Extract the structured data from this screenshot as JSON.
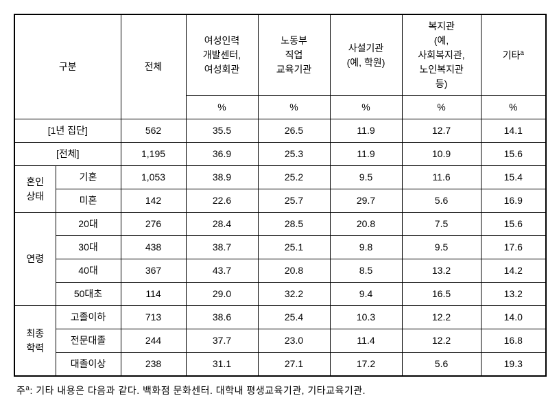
{
  "headers": {
    "category": "구분",
    "total": "전체",
    "col1": "여성인력\n개발센터,\n여성회관",
    "col2": "노동부\n직업\n교육기관",
    "col3": "사설기관\n(예, 학원)",
    "col4": "복지관\n(예,\n사회복지관,\n노인복지관\n등)",
    "col5": "기타",
    "col5_sup": "a",
    "pct": "%"
  },
  "rows": [
    {
      "cat1": "",
      "cat1_span": null,
      "label": "[1년 집단]",
      "label_colspan": 2,
      "total": "562",
      "v1": "35.5",
      "v2": "26.5",
      "v3": "11.9",
      "v4": "12.7",
      "v5": "14.1"
    },
    {
      "cat1": "",
      "cat1_span": null,
      "label": "[전체]",
      "label_colspan": 2,
      "total": "1,195",
      "v1": "36.9",
      "v2": "25.3",
      "v3": "11.9",
      "v4": "10.9",
      "v5": "15.6"
    },
    {
      "cat1": "혼인\n상태",
      "cat1_span": 2,
      "label": "기혼",
      "label_colspan": 1,
      "total": "1,053",
      "v1": "38.9",
      "v2": "25.2",
      "v3": "9.5",
      "v4": "11.6",
      "v5": "15.4"
    },
    {
      "cat1": null,
      "cat1_span": null,
      "label": "미혼",
      "label_colspan": 1,
      "total": "142",
      "v1": "22.6",
      "v2": "25.7",
      "v3": "29.7",
      "v4": "5.6",
      "v5": "16.9"
    },
    {
      "cat1": "연령",
      "cat1_span": 4,
      "label": "20대",
      "label_colspan": 1,
      "total": "276",
      "v1": "28.4",
      "v2": "28.5",
      "v3": "20.8",
      "v4": "7.5",
      "v5": "15.6"
    },
    {
      "cat1": null,
      "cat1_span": null,
      "label": "30대",
      "label_colspan": 1,
      "total": "438",
      "v1": "38.7",
      "v2": "25.1",
      "v3": "9.8",
      "v4": "9.5",
      "v5": "17.6"
    },
    {
      "cat1": null,
      "cat1_span": null,
      "label": "40대",
      "label_colspan": 1,
      "total": "367",
      "v1": "43.7",
      "v2": "20.8",
      "v3": "8.5",
      "v4": "13.2",
      "v5": "14.2"
    },
    {
      "cat1": null,
      "cat1_span": null,
      "label": "50대초",
      "label_colspan": 1,
      "total": "114",
      "v1": "29.0",
      "v2": "32.2",
      "v3": "9.4",
      "v4": "16.5",
      "v5": "13.2"
    },
    {
      "cat1": "최종\n학력",
      "cat1_span": 3,
      "label": "고졸이하",
      "label_colspan": 1,
      "total": "713",
      "v1": "38.6",
      "v2": "25.4",
      "v3": "10.3",
      "v4": "12.2",
      "v5": "14.0"
    },
    {
      "cat1": null,
      "cat1_span": null,
      "label": "전문대졸",
      "label_colspan": 1,
      "total": "244",
      "v1": "37.7",
      "v2": "23.0",
      "v3": "11.4",
      "v4": "12.2",
      "v5": "16.8"
    },
    {
      "cat1": null,
      "cat1_span": null,
      "label": "대졸이상",
      "label_colspan": 1,
      "total": "238",
      "v1": "31.1",
      "v2": "27.1",
      "v3": "17.2",
      "v4": "5.6",
      "v5": "19.3"
    }
  ],
  "footnote": {
    "prefix": "주",
    "sup": "a",
    "text": ": 기타 내용은 다음과 같다. 백화점 문화센터. 대학내 평생교육기관, 기타교육기관."
  }
}
